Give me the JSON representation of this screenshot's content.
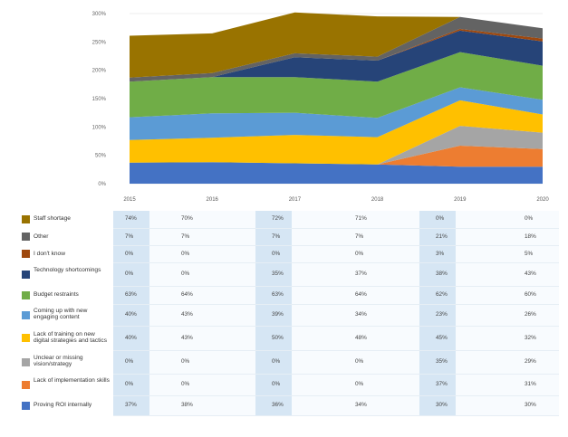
{
  "chart_data": {
    "type": "area",
    "stacked": true,
    "x": [
      "2015",
      "2016",
      "2017",
      "2018",
      "2019",
      "2020"
    ],
    "ylim": [
      0,
      300
    ],
    "yticks": [
      "0%",
      "50%",
      "100%",
      "150%",
      "200%",
      "250%",
      "300%"
    ],
    "grid": true,
    "series": [
      {
        "name": "Proving ROI internally",
        "color": "#4472c4",
        "values": [
          37,
          38,
          36,
          34,
          30,
          30
        ],
        "labels": [
          "37%",
          "38%",
          "36%",
          "34%",
          "30%",
          "30%"
        ]
      },
      {
        "name": "Lack of implementation skills",
        "color": "#ed7d31",
        "values": [
          0,
          0,
          0,
          0,
          37,
          31
        ],
        "labels": [
          "0%",
          "0%",
          "0%",
          "0%",
          "37%",
          "31%"
        ]
      },
      {
        "name": "Unclear or missing vision/strategy",
        "color": "#a5a5a5",
        "values": [
          0,
          0,
          0,
          0,
          35,
          29
        ],
        "labels": [
          "0%",
          "0%",
          "0%",
          "0%",
          "35%",
          "29%"
        ]
      },
      {
        "name": "Lack of training on new digital strategies and tactics",
        "color": "#ffc000",
        "values": [
          40,
          43,
          50,
          48,
          45,
          32
        ],
        "labels": [
          "40%",
          "43%",
          "50%",
          "48%",
          "45%",
          "32%"
        ]
      },
      {
        "name": "Coming up with new engaging content",
        "color": "#5b9bd5",
        "values": [
          40,
          43,
          39,
          34,
          23,
          26
        ],
        "labels": [
          "40%",
          "43%",
          "39%",
          "34%",
          "23%",
          "26%"
        ]
      },
      {
        "name": "Budget restraints",
        "color": "#70ad47",
        "values": [
          63,
          64,
          63,
          64,
          62,
          60
        ],
        "labels": [
          "63%",
          "64%",
          "63%",
          "64%",
          "62%",
          "60%"
        ]
      },
      {
        "name": "Technology shortcomings",
        "color": "#264478",
        "values": [
          0,
          0,
          35,
          37,
          38,
          43
        ],
        "labels": [
          "0%",
          "0%",
          "35%",
          "37%",
          "38%",
          "43%"
        ]
      },
      {
        "name": "I don't know",
        "color": "#9e480e",
        "values": [
          0,
          0,
          0,
          0,
          3,
          5
        ],
        "labels": [
          "0%",
          "0%",
          "0%",
          "0%",
          "3%",
          "5%"
        ]
      },
      {
        "name": "Other",
        "color": "#636363",
        "values": [
          7,
          7,
          7,
          7,
          21,
          18
        ],
        "labels": [
          "7%",
          "7%",
          "7%",
          "7%",
          "21%",
          "18%"
        ]
      },
      {
        "name": "Staff shortage",
        "color": "#997300",
        "values": [
          74,
          70,
          72,
          71,
          0,
          0
        ],
        "labels": [
          "74%",
          "70%",
          "72%",
          "71%",
          "0%",
          "0%"
        ]
      }
    ],
    "table_row_order": [
      "Staff shortage",
      "Other",
      "I don't know",
      "Technology shortcomings",
      "Budget restraints",
      "Coming up with new engaging content",
      "Lack of training on new digital strategies and tactics",
      "Unclear or missing vision/strategy",
      "Lack of implementation skills",
      "Proving ROI internally"
    ]
  }
}
